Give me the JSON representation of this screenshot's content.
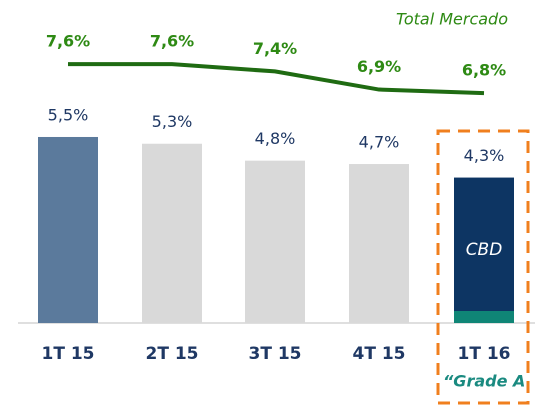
{
  "chart_data": {
    "type": "bar",
    "categories": [
      "1T 15",
      "2T 15",
      "3T 15",
      "4T 15",
      "1T 16"
    ],
    "series": [
      {
        "name": "Grade A",
        "type": "bar",
        "colors": [
          "#5b7a9c",
          "#d9d9d9",
          "#d9d9d9",
          "#d9d9d9",
          "#0d3563"
        ],
        "values": [
          5.5,
          5.3,
          4.8,
          4.7,
          4.3
        ],
        "value_labels": [
          "5,5%",
          "5,3%",
          "4,8%",
          "4,7%",
          "4,3%"
        ]
      },
      {
        "name": "Total Mercado",
        "type": "line",
        "axis": "y2",
        "color": "#1f6b12",
        "values": [
          7.6,
          7.6,
          7.4,
          6.9,
          6.8
        ],
        "value_labels": [
          "7,6%",
          "7,6%",
          "7,4%",
          "6,9%",
          "6,8%"
        ]
      }
    ],
    "annotations": [
      "CBD",
      "“Grade A"
    ],
    "ylim": [
      0,
      9.55
    ],
    "y2lim": [
      0.46,
      9.37
    ]
  }
}
